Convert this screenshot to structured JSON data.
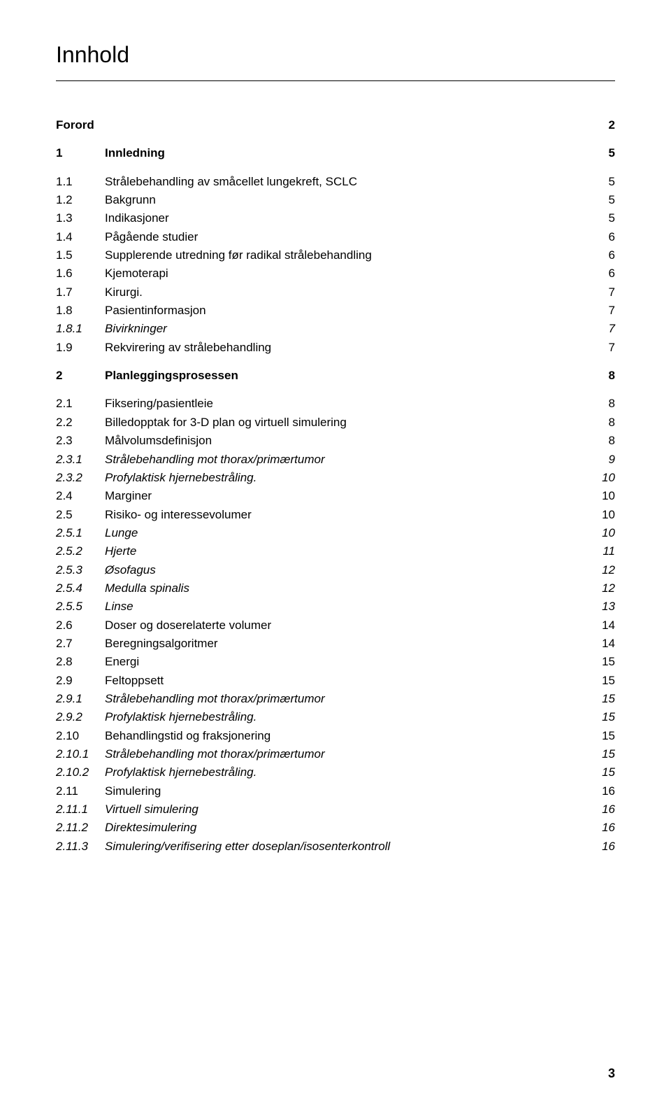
{
  "title": "Innhold",
  "footer_page": "3",
  "font_family": "Arial, Helvetica, sans-serif",
  "title_fontsize": 32,
  "body_fontsize": 17,
  "italic_fontsize": 17,
  "rule_color": "#000000",
  "text_color": "#000000",
  "background_color": "#ffffff",
  "col_num_width": 70,
  "col_page_width": 40,
  "entries": [
    {
      "num": "Forord",
      "title": "",
      "page": "2",
      "bold": true,
      "italic": false,
      "gap_after": true
    },
    {
      "num": "1",
      "title": "Innledning",
      "page": "5",
      "bold": true,
      "italic": false,
      "gap_after": true
    },
    {
      "num": "1.1",
      "title": "Strålebehandling av småcellet lungekreft, SCLC",
      "page": "5",
      "bold": false,
      "italic": false,
      "gap_after": false
    },
    {
      "num": "1.2",
      "title": "Bakgrunn",
      "page": "5",
      "bold": false,
      "italic": false,
      "gap_after": false
    },
    {
      "num": "1.3",
      "title": "Indikasjoner",
      "page": "5",
      "bold": false,
      "italic": false,
      "gap_after": false
    },
    {
      "num": "1.4",
      "title": "Pågående studier",
      "page": "6",
      "bold": false,
      "italic": false,
      "gap_after": false
    },
    {
      "num": "1.5",
      "title": "Supplerende utredning før radikal strålebehandling",
      "page": "6",
      "bold": false,
      "italic": false,
      "gap_after": false
    },
    {
      "num": "1.6",
      "title": "Kjemoterapi",
      "page": "6",
      "bold": false,
      "italic": false,
      "gap_after": false
    },
    {
      "num": "1.7",
      "title": "Kirurgi.",
      "page": "7",
      "bold": false,
      "italic": false,
      "gap_after": false
    },
    {
      "num": "1.8",
      "title": "Pasientinformasjon",
      "page": "7",
      "bold": false,
      "italic": false,
      "gap_after": false
    },
    {
      "num": "1.8.1",
      "title": "Bivirkninger",
      "page": "7",
      "bold": false,
      "italic": true,
      "gap_after": false
    },
    {
      "num": "1.9",
      "title": "Rekvirering av strålebehandling",
      "page": "7",
      "bold": false,
      "italic": false,
      "gap_after": true
    },
    {
      "num": "2",
      "title": "Planleggingsprosessen",
      "page": "8",
      "bold": true,
      "italic": false,
      "gap_after": true
    },
    {
      "num": "2.1",
      "title": "Fiksering/pasientleie",
      "page": "8",
      "bold": false,
      "italic": false,
      "gap_after": false
    },
    {
      "num": "2.2",
      "title": "Billedopptak for 3-D plan og virtuell simulering",
      "page": "8",
      "bold": false,
      "italic": false,
      "gap_after": false
    },
    {
      "num": "2.3",
      "title": "Målvolumsdefinisjon",
      "page": "8",
      "bold": false,
      "italic": false,
      "gap_after": false
    },
    {
      "num": "2.3.1",
      "title": "Strålebehandling mot thorax/primærtumor",
      "page": "9",
      "bold": false,
      "italic": true,
      "gap_after": false
    },
    {
      "num": "2.3.2",
      "title": "Profylaktisk hjernebestråling.",
      "page": "10",
      "bold": false,
      "italic": true,
      "gap_after": false
    },
    {
      "num": "2.4",
      "title": "Marginer",
      "page": "10",
      "bold": false,
      "italic": false,
      "gap_after": false
    },
    {
      "num": "2.5",
      "title": "Risiko- og interessevolumer",
      "page": "10",
      "bold": false,
      "italic": false,
      "gap_after": false
    },
    {
      "num": "2.5.1",
      "title": "Lunge",
      "page": "10",
      "bold": false,
      "italic": true,
      "gap_after": false
    },
    {
      "num": "2.5.2",
      "title": "Hjerte",
      "page": "11",
      "bold": false,
      "italic": true,
      "gap_after": false
    },
    {
      "num": "2.5.3",
      "title": "Øsofagus",
      "page": "12",
      "bold": false,
      "italic": true,
      "gap_after": false
    },
    {
      "num": "2.5.4",
      "title": "Medulla spinalis",
      "page": "12",
      "bold": false,
      "italic": true,
      "gap_after": false
    },
    {
      "num": "2.5.5",
      "title": "Linse",
      "page": "13",
      "bold": false,
      "italic": true,
      "gap_after": false
    },
    {
      "num": "2.6",
      "title": "Doser og doserelaterte volumer",
      "page": "14",
      "bold": false,
      "italic": false,
      "gap_after": false
    },
    {
      "num": "2.7",
      "title": "Beregningsalgoritmer",
      "page": "14",
      "bold": false,
      "italic": false,
      "gap_after": false
    },
    {
      "num": "2.8",
      "title": "Energi",
      "page": "15",
      "bold": false,
      "italic": false,
      "gap_after": false
    },
    {
      "num": "2.9",
      "title": "Feltoppsett",
      "page": "15",
      "bold": false,
      "italic": false,
      "gap_after": false
    },
    {
      "num": "2.9.1",
      "title": "Strålebehandling mot thorax/primærtumor",
      "page": "15",
      "bold": false,
      "italic": true,
      "gap_after": false
    },
    {
      "num": "2.9.2",
      "title": "Profylaktisk hjernebestråling.",
      "page": "15",
      "bold": false,
      "italic": true,
      "gap_after": false
    },
    {
      "num": "2.10",
      "title": "Behandlingstid og fraksjonering",
      "page": "15",
      "bold": false,
      "italic": false,
      "gap_after": false
    },
    {
      "num": "2.10.1",
      "title": "Strålebehandling mot thorax/primærtumor",
      "page": "15",
      "bold": false,
      "italic": true,
      "gap_after": false
    },
    {
      "num": "2.10.2",
      "title": "Profylaktisk hjernebestråling.",
      "page": "15",
      "bold": false,
      "italic": true,
      "gap_after": false
    },
    {
      "num": "2.11",
      "title": "Simulering",
      "page": "16",
      "bold": false,
      "italic": false,
      "gap_after": false
    },
    {
      "num": "2.11.1",
      "title": "Virtuell simulering",
      "page": "16",
      "bold": false,
      "italic": true,
      "gap_after": false
    },
    {
      "num": "2.11.2",
      "title": "Direktesimulering",
      "page": "16",
      "bold": false,
      "italic": true,
      "gap_after": false
    },
    {
      "num": "2.11.3",
      "title": "Simulering/verifisering etter doseplan/isosenterkontroll",
      "page": "16",
      "bold": false,
      "italic": true,
      "gap_after": false
    }
  ]
}
